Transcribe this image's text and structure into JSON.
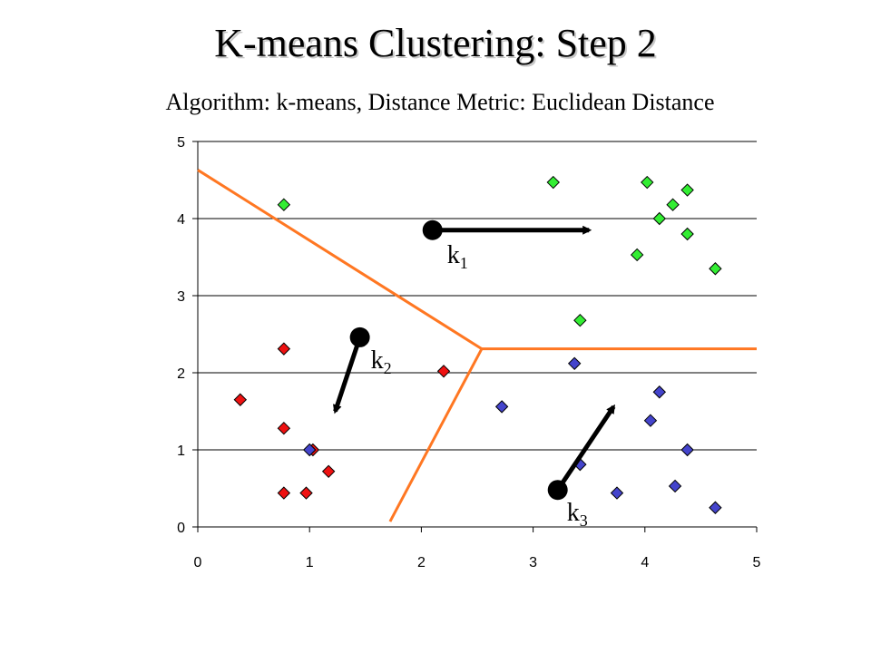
{
  "title": "K-means Clustering: Step 2",
  "subtitle": "Algorithm: k-means, Distance Metric: Euclidean Distance",
  "chart_data": {
    "type": "scatter",
    "xlim": [
      0,
      5
    ],
    "ylim": [
      0,
      5
    ],
    "xticks": [
      "0",
      "1",
      "2",
      "3",
      "4",
      "5"
    ],
    "yticks": [
      "0",
      "1",
      "2",
      "3",
      "4",
      "5"
    ],
    "grid": "horizontal",
    "colors": {
      "cluster1": "#33ee33",
      "cluster2": "#ee1111",
      "cluster3": "#4444cc",
      "boundary": "#ff7722",
      "center": "#000000"
    },
    "series": [
      {
        "color": "#33ee33",
        "points": [
          [
            0.77,
            4.18
          ],
          [
            3.18,
            4.47
          ],
          [
            4.02,
            4.47
          ],
          [
            4.38,
            4.37
          ],
          [
            4.25,
            4.18
          ],
          [
            4.13,
            4.0
          ],
          [
            4.38,
            3.8
          ],
          [
            3.93,
            3.53
          ],
          [
            4.63,
            3.35
          ],
          [
            3.42,
            2.68
          ]
        ]
      },
      {
        "color": "#ee1111",
        "points": [
          [
            0.77,
            2.31
          ],
          [
            2.2,
            2.02
          ],
          [
            0.38,
            1.65
          ],
          [
            0.77,
            1.28
          ],
          [
            1.03,
            1.0
          ],
          [
            1.17,
            0.72
          ],
          [
            0.77,
            0.44
          ],
          [
            0.97,
            0.44
          ]
        ]
      },
      {
        "color": "#4444cc",
        "points": [
          [
            3.37,
            2.12
          ],
          [
            2.72,
            1.56
          ],
          [
            4.13,
            1.75
          ],
          [
            4.05,
            1.38
          ],
          [
            4.38,
            1.0
          ],
          [
            1.0,
            1.0
          ],
          [
            3.42,
            0.81
          ],
          [
            3.75,
            0.44
          ],
          [
            4.27,
            0.53
          ],
          [
            4.63,
            0.25
          ]
        ]
      }
    ],
    "centers": [
      {
        "label": "k",
        "sub": "1",
        "at": [
          2.1,
          3.85
        ],
        "to": [
          3.5,
          3.85
        ]
      },
      {
        "label": "k",
        "sub": "2",
        "at": [
          1.45,
          2.46
        ],
        "to": [
          1.23,
          1.5
        ]
      },
      {
        "label": "k",
        "sub": "3",
        "at": [
          3.22,
          0.48
        ],
        "to": [
          3.72,
          1.56
        ]
      }
    ],
    "boundaries": [
      [
        [
          0.0,
          4.63
        ],
        [
          2.54,
          2.31
        ]
      ],
      [
        [
          2.54,
          2.31
        ],
        [
          5.0,
          2.31
        ]
      ],
      [
        [
          2.54,
          2.31
        ],
        [
          1.72,
          0.07
        ]
      ]
    ]
  }
}
